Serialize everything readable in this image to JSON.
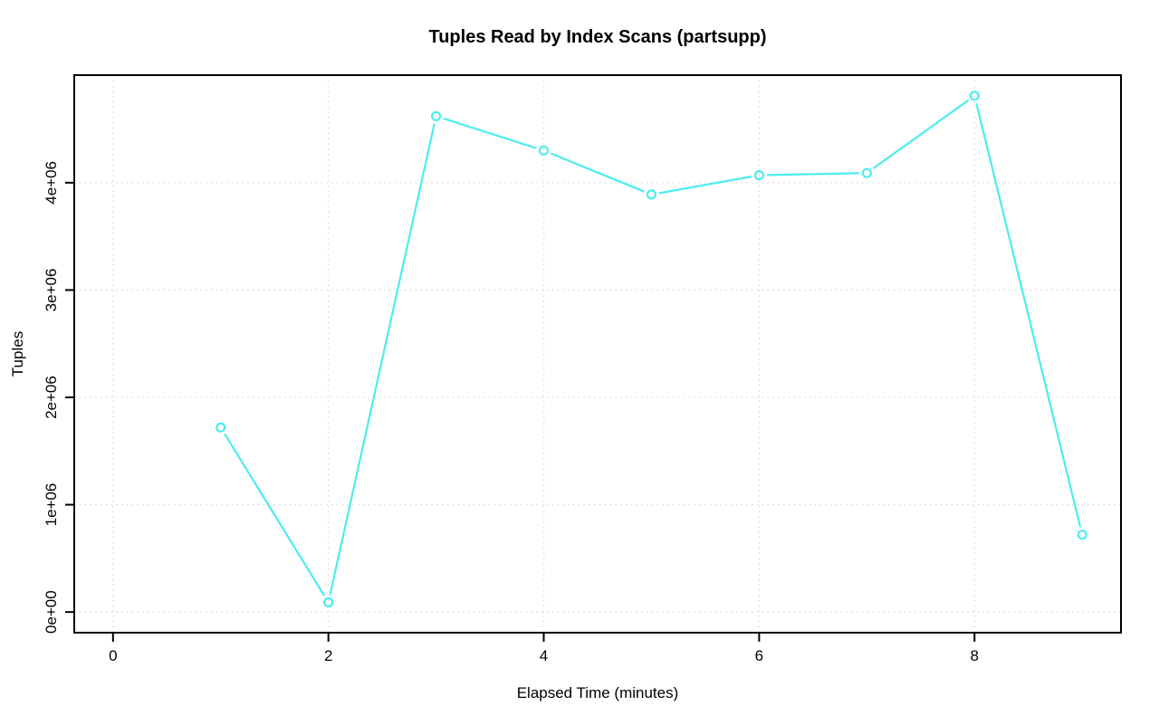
{
  "page": {
    "background_color": "#ffffff",
    "text_color": "#000000"
  },
  "chart_data": {
    "type": "line",
    "title": "Tuples Read by Index Scans (partsupp)",
    "xlabel": "Elapsed Time (minutes)",
    "ylabel": "Tuples",
    "x": [
      1,
      2,
      3,
      4,
      5,
      6,
      7,
      8,
      9
    ],
    "y": [
      1720000,
      90000,
      4620000,
      4300000,
      3890000,
      4070000,
      4090000,
      4810000,
      720000
    ],
    "xticks": {
      "values": [
        0,
        2,
        4,
        6,
        8
      ],
      "labels": [
        "0",
        "2",
        "4",
        "6",
        "8"
      ]
    },
    "yticks": {
      "values": [
        0,
        1000000,
        2000000,
        3000000,
        4000000
      ],
      "labels": [
        "0e+00",
        "1e+06",
        "2e+06",
        "3e+06",
        "4e+06"
      ]
    },
    "xlim": [
      -0.36,
      9.36
    ],
    "ylim": [
      -192400,
      5002400
    ],
    "grid": "dotted",
    "legend_position": "none",
    "marker": "open-circle",
    "colors": {
      "series": "#4BEDEF",
      "grid": "#D6D6D6",
      "axis": "#000000",
      "marker_fill": "none"
    }
  }
}
